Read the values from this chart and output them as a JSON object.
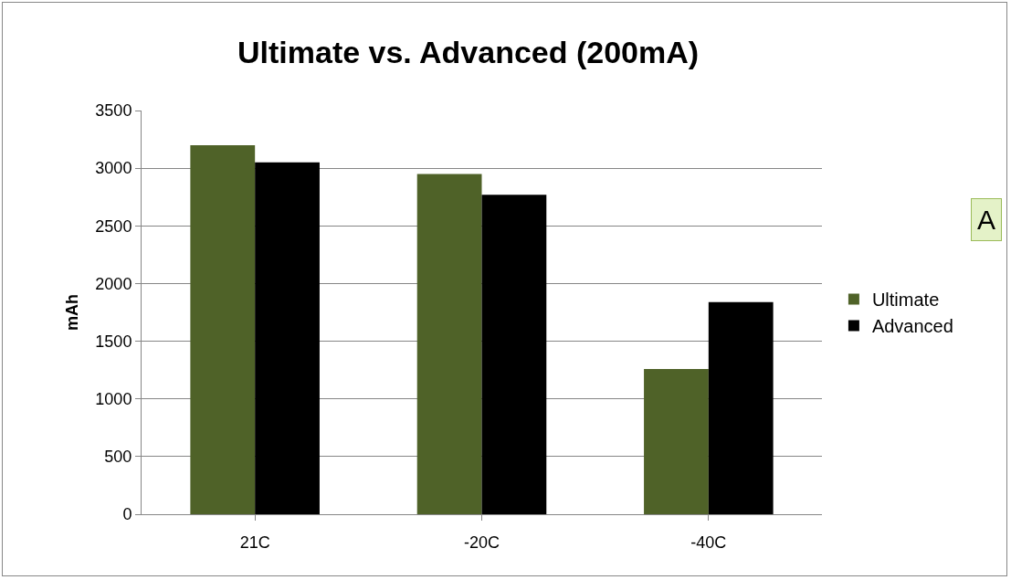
{
  "chart_data": {
    "type": "bar",
    "title": "Ultimate vs. Advanced (200mA)",
    "ylabel": "mAh",
    "categories": [
      "21C",
      "-20C",
      "-40C"
    ],
    "series": [
      {
        "name": "Ultimate",
        "color": "#4f6228",
        "values": [
          3200,
          2950,
          1260
        ]
      },
      {
        "name": "Advanced",
        "color": "#000000",
        "values": [
          3050,
          2770,
          1840
        ]
      }
    ],
    "ylim": [
      0,
      3500
    ],
    "yticks": [
      0,
      500,
      1000,
      1500,
      2000,
      2500,
      3000,
      3500
    ],
    "grid": "y",
    "legend": "right",
    "annotations": [
      "A"
    ]
  }
}
